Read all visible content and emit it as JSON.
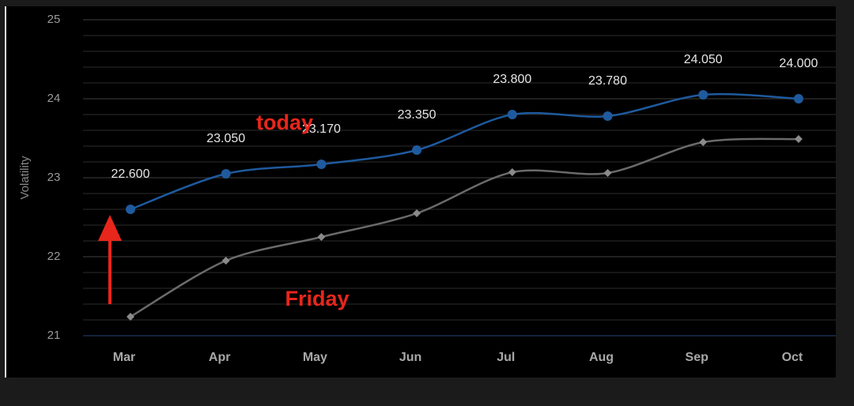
{
  "chart_data": {
    "type": "line",
    "y_label": "Volatility",
    "categories": [
      "Mar",
      "Apr",
      "May",
      "Jun",
      "Jul",
      "Aug",
      "Sep",
      "Oct"
    ],
    "series": [
      {
        "name": "today",
        "color": "#1f5a9e",
        "marker": "circle",
        "values": [
          22.6,
          23.05,
          23.17,
          23.35,
          23.8,
          23.78,
          24.05,
          24.0
        ],
        "value_labels": [
          "22.600",
          "23.050",
          "23.170",
          "23.350",
          "23.800",
          "23.780",
          "24.050",
          "24.000"
        ]
      },
      {
        "name": "Friday",
        "color": "#6a6a6a",
        "marker": "diamond",
        "values": [
          21.24,
          21.95,
          22.25,
          22.55,
          23.07,
          23.06,
          23.45,
          23.49
        ]
      }
    ],
    "ylim": [
      21,
      25
    ],
    "yticks": [
      21,
      22,
      23,
      24,
      25
    ],
    "minor_yticks": [
      21.2,
      21.4,
      21.6,
      21.8,
      22.2,
      22.4,
      22.6,
      22.8,
      23.2,
      23.4,
      23.6,
      23.8,
      24.2,
      24.4,
      24.6,
      24.8
    ],
    "grid": true
  }
}
